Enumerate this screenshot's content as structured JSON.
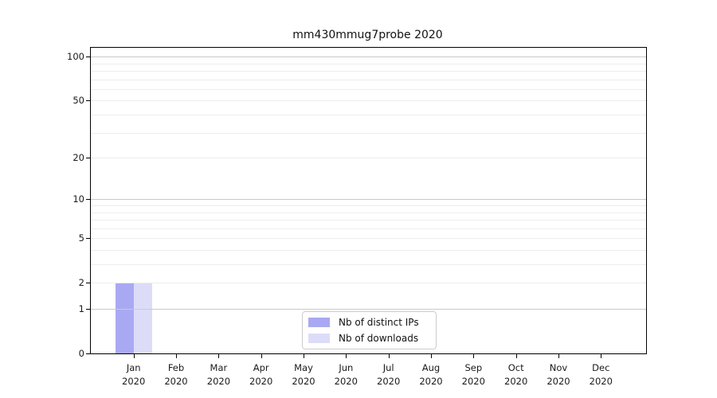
{
  "title": "mm430mmug7probe 2020",
  "chart_data": {
    "type": "bar",
    "title": "mm430mmug7probe 2020",
    "categories": [
      "Jan",
      "Feb",
      "Mar",
      "Apr",
      "May",
      "Jun",
      "Jul",
      "Aug",
      "Sep",
      "Oct",
      "Nov",
      "Dec"
    ],
    "x_tick_sublabel": "2020",
    "series": [
      {
        "name": "Nb of distinct IPs",
        "color": "#a9a9f3",
        "values": [
          2,
          0,
          0,
          0,
          0,
          0,
          0,
          0,
          0,
          0,
          0,
          0
        ]
      },
      {
        "name": "Nb of downloads",
        "color": "#dcdcf9",
        "values": [
          2,
          0,
          0,
          0,
          0,
          0,
          0,
          0,
          0,
          0,
          0,
          0
        ]
      }
    ],
    "y_axis": {
      "scale": "log1p",
      "ticks": [
        0,
        1,
        2,
        5,
        10,
        20,
        50,
        100
      ],
      "emphasized_gridlines": [
        1,
        10,
        100
      ],
      "minor_gridlines": [
        2,
        3,
        4,
        5,
        6,
        7,
        8,
        9,
        20,
        30,
        40,
        50,
        60,
        70,
        80,
        90
      ],
      "top_value": 115
    },
    "legend": {
      "position": "bottom-center",
      "items": [
        "Nb of distinct IPs",
        "Nb of downloads"
      ]
    },
    "grid": true,
    "colors": {
      "grid_minor": "#ededed",
      "grid_major": "#c9c9c9",
      "spine": "#000000",
      "text": "#1a1a1a",
      "legend_border": "#cccccc",
      "background": "#ffffff"
    }
  }
}
